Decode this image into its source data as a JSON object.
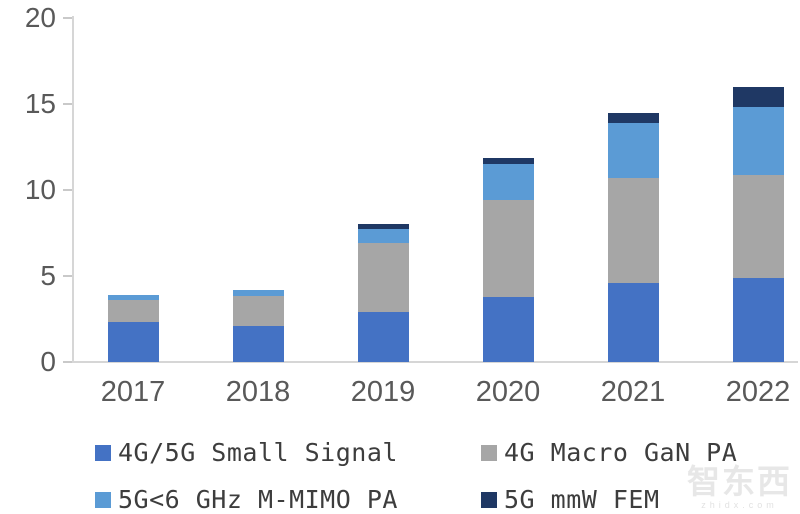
{
  "chart_data": {
    "type": "bar",
    "stacked": true,
    "title": "",
    "xlabel": "",
    "ylabel": "",
    "categories": [
      "2017",
      "2018",
      "2019",
      "2020",
      "2021",
      "2022"
    ],
    "series": [
      {
        "name": "4G/5G Small Signal",
        "color": "#4472C4",
        "values": [
          2.3,
          2.1,
          2.9,
          3.8,
          4.6,
          4.9
        ]
      },
      {
        "name": "4G Macro GaN PA",
        "color": "#A6A6A6",
        "values": [
          1.3,
          1.75,
          4.0,
          5.6,
          6.1,
          6.0
        ]
      },
      {
        "name": "5G<6 GHz M-MIMO PA",
        "color": "#5B9BD5",
        "values": [
          0.3,
          0.35,
          0.85,
          2.1,
          3.2,
          3.9
        ]
      },
      {
        "name": "5G mmW FEM",
        "color": "#1F3864",
        "values": [
          0,
          0,
          0.25,
          0.35,
          0.6,
          1.2
        ]
      }
    ],
    "totals": [
      3.9,
      4.2,
      8.0,
      11.85,
      14.5,
      16.0
    ],
    "ylim": [
      0,
      20
    ],
    "yticks": [
      0,
      5,
      10,
      15,
      20
    ],
    "grid": false,
    "legend_position": "bottom"
  },
  "watermark": {
    "text": "智东西",
    "subtext": "zhidx.com"
  }
}
